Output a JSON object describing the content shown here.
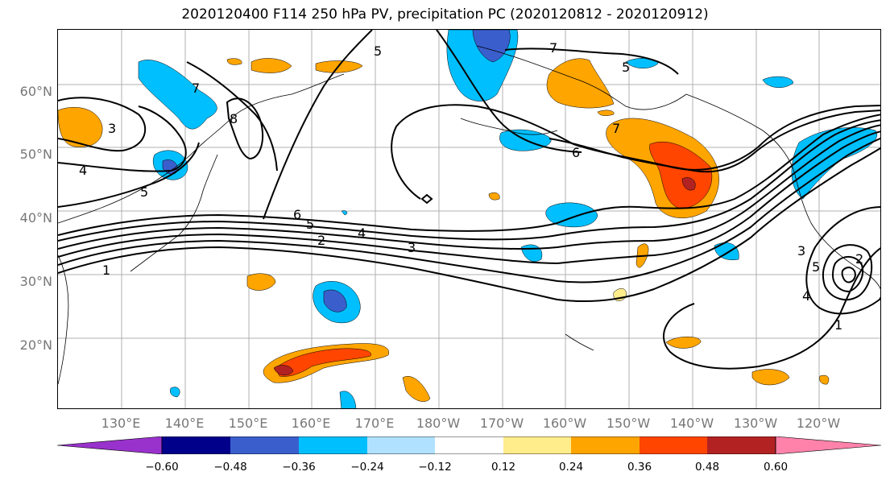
{
  "title": "2020120400 F114 250 hPa PV, precipitation PC (2020120812 - 2020120912)",
  "lat_labels": [
    "60°N",
    "50°N",
    "40°N",
    "30°N",
    "20°N"
  ],
  "lon_labels": [
    "130°E",
    "140°E",
    "150°E",
    "160°E",
    "170°E",
    "180°W",
    "170°W",
    "160°W",
    "150°W",
    "140°W",
    "130°W",
    "120°W"
  ],
  "colorbar": {
    "ticks": [
      "−0.60",
      "−0.48",
      "−0.36",
      "−0.24",
      "−0.12",
      "0.12",
      "0.24",
      "0.36",
      "0.48",
      "0.60"
    ],
    "colors": [
      "#9932cc",
      "#00008b",
      "#3a5fcd",
      "#00bfff",
      "#b0e2ff",
      "#ffffff",
      "#ffec8b",
      "#ffa500",
      "#ff4500",
      "#b22222",
      "#ff82ab"
    ]
  },
  "contour_labels": [
    "3",
    "4",
    "5",
    "7",
    "8",
    "5",
    "7",
    "5",
    "6",
    "7",
    "6",
    "5",
    "4",
    "3",
    "2",
    "1",
    "3",
    "5",
    "4",
    "1",
    "2"
  ],
  "colors": {
    "neg_light": "#b0e2ff",
    "neg_mid": "#00bfff",
    "neg_strong": "#3a5fcd",
    "pos_light": "#ffec8b",
    "pos_mid": "#ffa500",
    "pos_strong": "#ff4500",
    "pos_dark": "#b22222"
  }
}
